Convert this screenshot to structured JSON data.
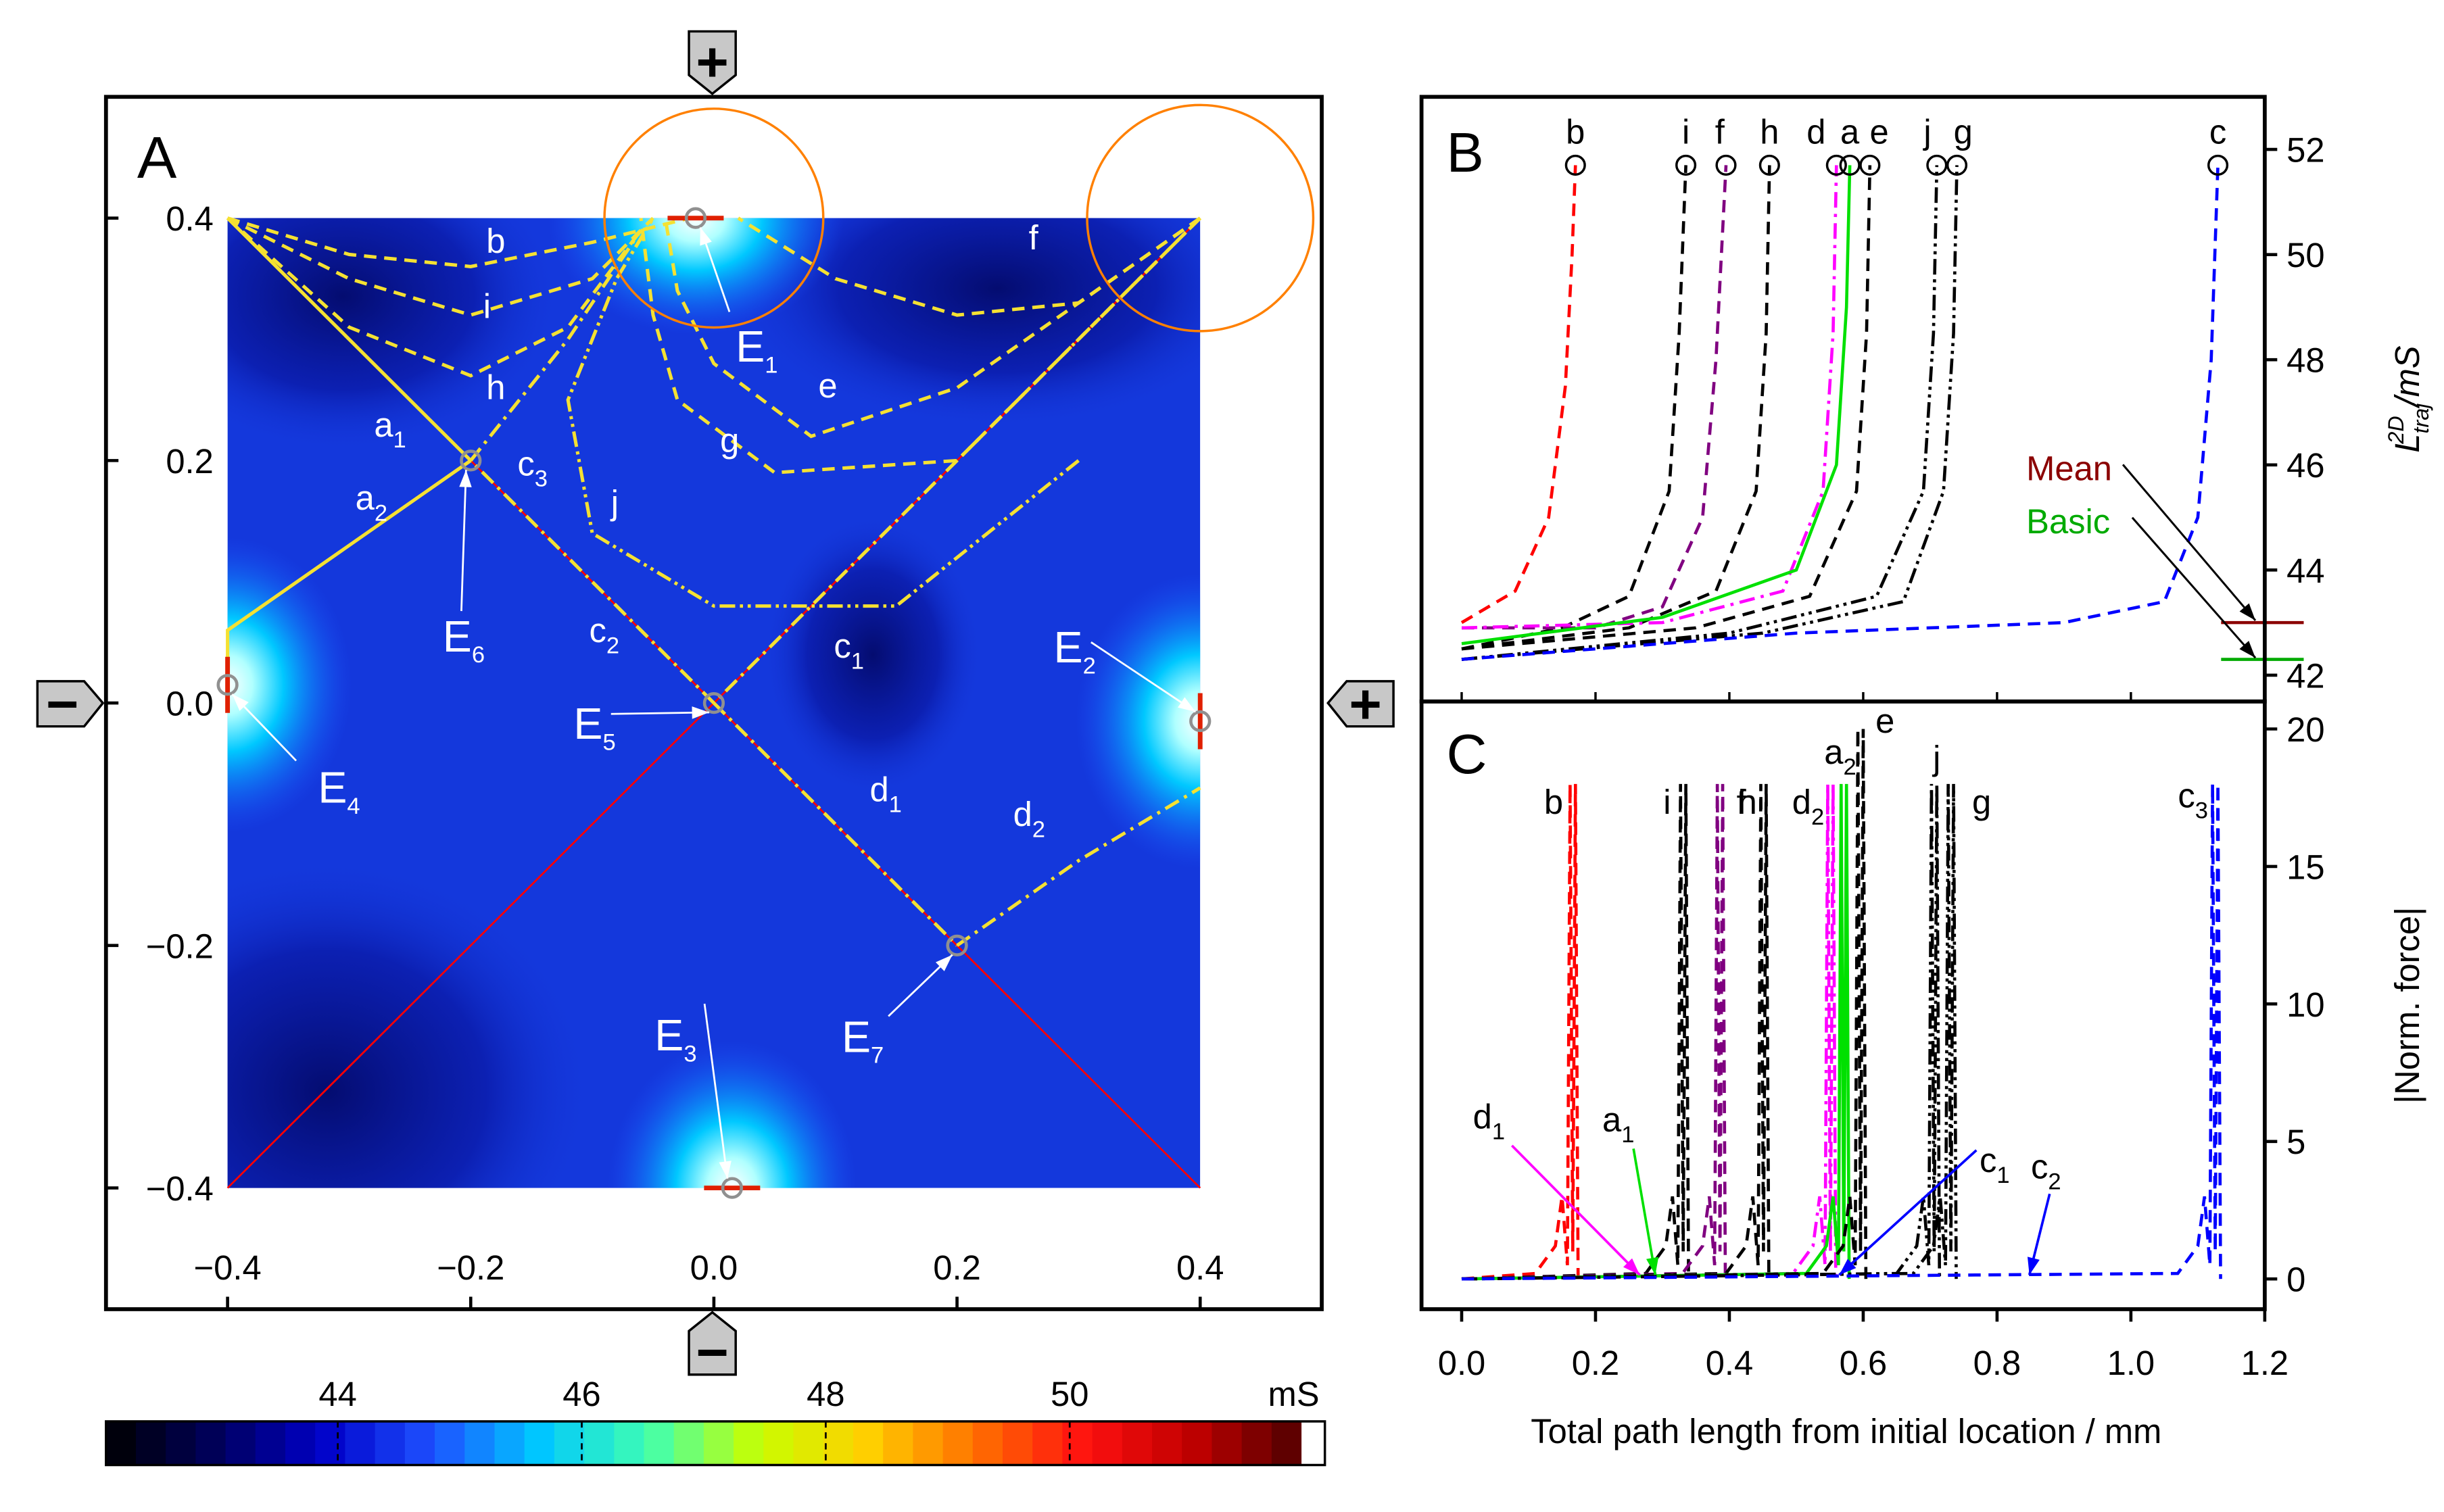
{
  "chart_data": [
    {
      "type": "contour",
      "title": "A",
      "xlim": [
        -0.5,
        0.5
      ],
      "ylim": [
        -0.5,
        0.5
      ],
      "xticks": [
        {
          "value": -0.4,
          "label": "−0.4"
        },
        {
          "value": -0.2,
          "label": "−0.2"
        },
        {
          "value": 0,
          "label": "0.0"
        },
        0.2,
        0.4
      ],
      "yticks": [
        {
          "value": -0.4,
          "label": "−0.4"
        },
        {
          "value": -0.2,
          "label": "−0.2"
        },
        {
          "value": 0,
          "label": "0.0"
        },
        0.2,
        0.4
      ],
      "electrodes": {
        "top": "+",
        "right": "+",
        "bottom": "−",
        "left": "−"
      },
      "colorbar": {
        "lim": [
          42.1,
          51.9
        ],
        "ticks": [
          44,
          46,
          48,
          50
        ],
        "unit": "mS",
        "colors": [
          "#000000",
          "#00005a",
          "#0000c8",
          "#1e50ff",
          "#00c8ff",
          "#40ffb0",
          "#c8ff00",
          "#ffd000",
          "#ff7000",
          "#ff1010",
          "#c00000",
          "#500000"
        ]
      },
      "points": [
        {
          "name": "E",
          "sub": "1",
          "x": -0.015,
          "y": 0.4
        },
        {
          "name": "E",
          "sub": "2",
          "x": 0.4,
          "y": -0.015
        },
        {
          "name": "E",
          "sub": "3",
          "x": 0.015,
          "y": -0.4
        },
        {
          "name": "E",
          "sub": "4",
          "x": -0.4,
          "y": 0.015
        },
        {
          "name": "E",
          "sub": "5",
          "x": 0,
          "y": 0
        },
        {
          "name": "E",
          "sub": "6",
          "x": -0.2,
          "y": 0.2
        },
        {
          "name": "E",
          "sub": "7",
          "x": 0.2,
          "y": -0.2
        }
      ],
      "guides": [
        {
          "color": "#ff0000",
          "x": [
            -0.4,
            0.4
          ],
          "y": [
            -0.4,
            0.4
          ]
        },
        {
          "color": "#ff0000",
          "x": [
            -0.4,
            0.4
          ],
          "y": [
            0.4,
            -0.4
          ]
        }
      ],
      "circles": [
        {
          "color": "#ff8000",
          "x": 0,
          "y": 0.4,
          "r": 0.09
        },
        {
          "color": "#ff8000",
          "x": 0.4,
          "y": 0.4,
          "r": 0.093
        }
      ],
      "trajectory_color": "#f5e132",
      "trajectories": [
        {
          "name": "a",
          "sub": "1",
          "dash": "solid",
          "x": [
            -0.4,
            -0.2
          ],
          "y": [
            0.4,
            0.2
          ]
        },
        {
          "name": "a",
          "sub": "2",
          "dash": "solid",
          "x": [
            -0.2,
            -0.4,
            -0.4
          ],
          "y": [
            0.2,
            0.06,
            0.015
          ]
        },
        {
          "name": "b",
          "dash": "dash",
          "x": [
            -0.4,
            -0.3,
            -0.2,
            -0.1,
            -0.02
          ],
          "y": [
            0.4,
            0.37,
            0.36,
            0.38,
            0.4
          ]
        },
        {
          "name": "i",
          "dash": "dash",
          "x": [
            -0.4,
            -0.3,
            -0.2,
            -0.1,
            -0.05
          ],
          "y": [
            0.4,
            0.35,
            0.32,
            0.35,
            0.4
          ]
        },
        {
          "name": "h",
          "dash": "dash",
          "x": [
            -0.4,
            -0.3,
            -0.2,
            -0.12,
            -0.06
          ],
          "y": [
            0.4,
            0.31,
            0.27,
            0.31,
            0.39
          ]
        },
        {
          "name": "c",
          "sub": "1",
          "dash": "dashdot",
          "x": [
            0.4,
            0
          ],
          "y": [
            0.4,
            0
          ]
        },
        {
          "name": "c",
          "sub": "2",
          "dash": "dashdot",
          "x": [
            0,
            -0.2
          ],
          "y": [
            0,
            0.2
          ]
        },
        {
          "name": "c",
          "sub": "3",
          "dash": "dashdot",
          "x": [
            -0.2,
            -0.12,
            -0.06
          ],
          "y": [
            0.2,
            0.3,
            0.39
          ]
        },
        {
          "name": "d",
          "sub": "1",
          "dash": "dashdot",
          "x": [
            0,
            0.2
          ],
          "y": [
            0,
            -0.2
          ]
        },
        {
          "name": "d",
          "sub": "2",
          "dash": "dashdot",
          "x": [
            0.2,
            0.3,
            0.4
          ],
          "y": [
            -0.2,
            -0.13,
            -0.07
          ]
        },
        {
          "name": "e",
          "dash": "dash",
          "x": [
            0.4,
            0.2,
            0.08,
            0,
            -0.03,
            -0.04
          ],
          "y": [
            0.4,
            0.26,
            0.22,
            0.28,
            0.34,
            0.4
          ]
        },
        {
          "name": "g",
          "dash": "dash",
          "x": [
            0.4,
            0.2,
            0.05,
            -0.03,
            -0.05,
            -0.06
          ],
          "y": [
            0.4,
            0.2,
            0.19,
            0.25,
            0.32,
            0.4
          ]
        },
        {
          "name": "f",
          "dash": "dash",
          "x": [
            0.4,
            0.3,
            0.2,
            0.1,
            0.02
          ],
          "y": [
            0.4,
            0.33,
            0.32,
            0.35,
            0.4
          ]
        },
        {
          "name": "j",
          "dash": "dashdotdot",
          "x": [
            0.3,
            0.15,
            0,
            -0.1,
            -0.12,
            -0.08,
            -0.05
          ],
          "y": [
            0.2,
            0.08,
            0.08,
            0.14,
            0.25,
            0.35,
            0.4
          ]
        }
      ]
    },
    {
      "type": "line",
      "title": "B",
      "xlim": [
        -0.06,
        1.2
      ],
      "ylim": [
        41.5,
        53
      ],
      "yticks": [
        42,
        44,
        46,
        48,
        50,
        52
      ],
      "ylabel": {
        "text": "L",
        "sub": "traj",
        "sup": "2D",
        "unit": "/mS"
      },
      "reference_lines": [
        {
          "name": "Mean",
          "color": "#8b0000",
          "value": 43.0
        },
        {
          "name": "Basic",
          "color": "#00aa00",
          "value": 42.3
        }
      ],
      "series": [
        {
          "name": "b",
          "color": "#ff0000",
          "dash": "dash",
          "x": [
            0,
            0.08,
            0.13,
            0.155,
            0.165,
            0.17
          ],
          "values": [
            43.0,
            43.6,
            45,
            47.5,
            50,
            51.7
          ]
        },
        {
          "name": "i",
          "color": "#000000",
          "dash": "dash",
          "x": [
            0,
            0.15,
            0.25,
            0.31,
            0.325,
            0.335
          ],
          "values": [
            42.5,
            42.9,
            43.5,
            45.5,
            48.5,
            51.7
          ]
        },
        {
          "name": "f",
          "color": "#800080",
          "dash": "dash",
          "x": [
            0,
            0.2,
            0.3,
            0.36,
            0.38,
            0.395
          ],
          "values": [
            42.9,
            42.9,
            43.3,
            45,
            48,
            51.7
          ]
        },
        {
          "name": "h",
          "color": "#000000",
          "dash": "dash",
          "x": [
            0,
            0.25,
            0.38,
            0.44,
            0.455,
            0.46
          ],
          "values": [
            42.5,
            42.9,
            43.6,
            45.5,
            48.5,
            51.7
          ]
        },
        {
          "name": "d",
          "color": "#ff00ff",
          "dash": "dashdot",
          "x": [
            0,
            0.3,
            0.48,
            0.54,
            0.555,
            0.56
          ],
          "values": [
            42.9,
            43.0,
            43.6,
            45.5,
            48.5,
            51.7
          ]
        },
        {
          "name": "a",
          "color": "#00e000",
          "dash": "solid",
          "x": [
            0,
            0.3,
            0.5,
            0.56,
            0.575,
            0.58
          ],
          "values": [
            42.6,
            43.1,
            44.0,
            46,
            49,
            51.7
          ]
        },
        {
          "name": "e",
          "color": "#000000",
          "dash": "dash",
          "x": [
            0,
            0.35,
            0.52,
            0.59,
            0.605,
            0.61
          ],
          "values": [
            42.5,
            42.9,
            43.5,
            45.5,
            48.5,
            51.7
          ]
        },
        {
          "name": "j",
          "color": "#000000",
          "dash": "dashdotdot",
          "x": [
            0,
            0.4,
            0.62,
            0.69,
            0.705,
            0.71
          ],
          "values": [
            42.3,
            42.8,
            43.5,
            45.5,
            48.5,
            51.7
          ]
        },
        {
          "name": "g",
          "color": "#000000",
          "dash": "dashdotdot",
          "x": [
            0,
            0.45,
            0.66,
            0.72,
            0.735,
            0.74
          ],
          "values": [
            42.3,
            42.8,
            43.4,
            45.5,
            48.5,
            51.7
          ]
        },
        {
          "name": "c",
          "color": "#0000ff",
          "dash": "dash",
          "x": [
            0,
            0.5,
            0.9,
            1.05,
            1.1,
            1.12,
            1.13
          ],
          "values": [
            42.3,
            42.8,
            43.0,
            43.4,
            45,
            48,
            51.7
          ]
        }
      ]
    },
    {
      "type": "line",
      "title": "C",
      "xlim": [
        -0.06,
        1.2
      ],
      "ylim": [
        -1.1,
        21
      ],
      "xticks": [
        {
          "value": 0,
          "label": "0.0"
        },
        0.2,
        0.4,
        0.6,
        0.8,
        {
          "value": 1,
          "label": "1.0"
        },
        1.2
      ],
      "yticks": [
        0,
        5,
        10,
        15,
        20
      ],
      "xlabel": "Total path length from initial location / mm",
      "ylabel": "|Norm. force|",
      "annotations": [
        {
          "name": "d",
          "sub": "1",
          "color": "#ff00ff"
        },
        {
          "name": "a",
          "sub": "1",
          "color": "#00e000"
        },
        {
          "name": "c",
          "sub": "1",
          "color": "#0000ff"
        },
        {
          "name": "c",
          "sub": "2",
          "color": "#0000ff"
        }
      ],
      "series": [
        {
          "name": "b",
          "color": "#ff0000",
          "dash": "dash",
          "x": [
            0,
            0.11,
            0.14,
            0.15,
            0.158,
            0.162,
            0.166,
            0.17,
            0.174
          ],
          "values": [
            0,
            0.2,
            1.2,
            3,
            0.5,
            18,
            1,
            18,
            0
          ]
        },
        {
          "name": "i",
          "color": "#000000",
          "dash": "dash",
          "x": [
            0,
            0.275,
            0.305,
            0.315,
            0.323,
            0.327,
            0.331,
            0.335,
            0.339
          ],
          "values": [
            0,
            0.2,
            1.2,
            3,
            0.5,
            18,
            1,
            18,
            0
          ]
        },
        {
          "name": "f",
          "color": "#800080",
          "dash": "dash",
          "x": [
            0,
            0.33,
            0.36,
            0.37,
            0.378,
            0.382,
            0.386,
            0.39,
            0.394
          ],
          "values": [
            0,
            0.2,
            1.2,
            3,
            0.5,
            18,
            1,
            18,
            0
          ]
        },
        {
          "name": "h",
          "color": "#000000",
          "dash": "dash",
          "x": [
            0,
            0.395,
            0.425,
            0.435,
            0.443,
            0.447,
            0.451,
            0.455,
            0.459
          ],
          "values": [
            0,
            0.2,
            1.2,
            3,
            0.5,
            18,
            1,
            18,
            0
          ]
        },
        {
          "name": "d",
          "sub": "2",
          "color": "#ff00ff",
          "dash": "dashdot",
          "x": [
            0,
            0.495,
            0.525,
            0.535,
            0.543,
            0.547,
            0.551,
            0.555,
            0.559
          ],
          "values": [
            0,
            0.2,
            1.2,
            3,
            0.5,
            18,
            1,
            18,
            0
          ]
        },
        {
          "name": "a",
          "sub": "2",
          "color": "#00e000",
          "dash": "solid",
          "x": [
            0,
            0.515,
            0.545,
            0.555,
            0.563,
            0.567,
            0.571,
            0.575,
            0.579
          ],
          "values": [
            0,
            0.2,
            1.2,
            3,
            0.5,
            18,
            1,
            18,
            0
          ]
        },
        {
          "name": "e",
          "color": "#000000",
          "dash": "dash",
          "x": [
            0,
            0.54,
            0.57,
            0.58,
            0.588,
            0.592,
            0.596,
            0.6,
            0.604
          ],
          "values": [
            0,
            0.2,
            1.2,
            3,
            0.5,
            20,
            1,
            20,
            0
          ]
        },
        {
          "name": "j",
          "color": "#000000",
          "dash": "dashdotdot",
          "x": [
            0,
            0.65,
            0.68,
            0.69,
            0.698,
            0.702,
            0.706,
            0.71,
            0.714
          ],
          "values": [
            0,
            0.2,
            1.2,
            3,
            0.5,
            18,
            1,
            18,
            0
          ]
        },
        {
          "name": "g",
          "color": "#000000",
          "dash": "dashdotdot",
          "x": [
            0,
            0.675,
            0.705,
            0.715,
            0.723,
            0.727,
            0.731,
            0.735,
            0.739
          ],
          "values": [
            0,
            0.2,
            1.2,
            3,
            0.5,
            18,
            1,
            18,
            0
          ]
        },
        {
          "name": "c",
          "sub": "3",
          "color": "#0000ff",
          "dash": "dash",
          "x": [
            0,
            1.07,
            1.1,
            1.11,
            1.118,
            1.122,
            1.126,
            1.13,
            1.134
          ],
          "values": [
            0,
            0.2,
            1.2,
            3,
            0.5,
            18,
            1,
            18,
            0
          ]
        }
      ]
    }
  ]
}
